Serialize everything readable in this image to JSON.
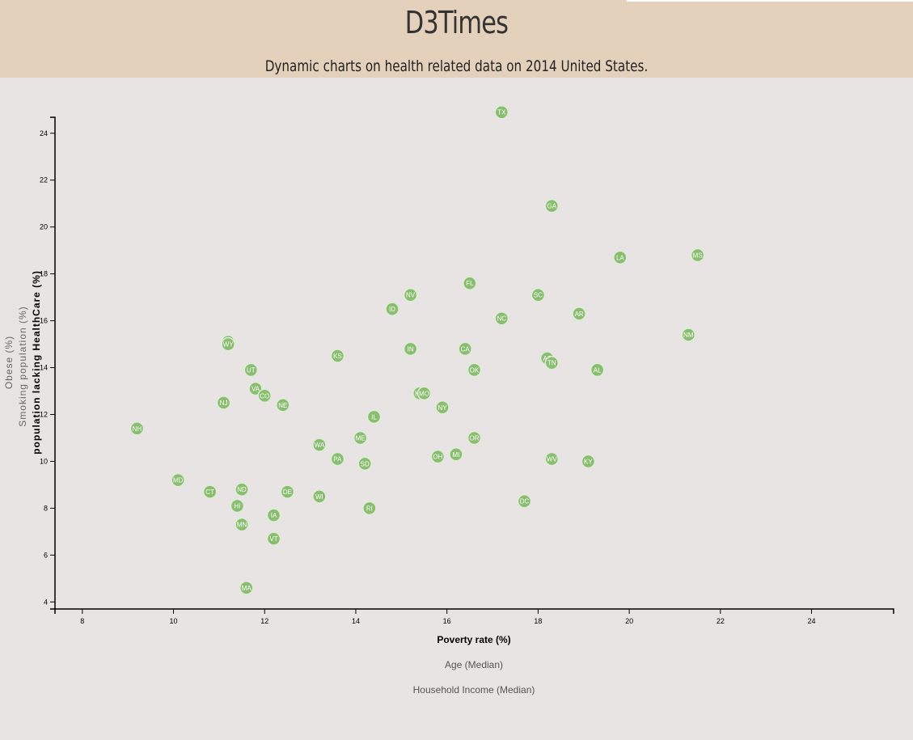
{
  "header": {
    "title": "D3Times",
    "subtitle": "Dynamic charts on health related data on 2014 United States."
  },
  "colors": {
    "header_bg": "#e3d1bb",
    "page_bg": "#e9e4e4",
    "marker_fill": "#89bd6f",
    "marker_stroke": "#e0ecd8",
    "marker_text": "#ffffff"
  },
  "chart_data": {
    "type": "scatter",
    "title": "",
    "xlabel": "Poverty rate (%)",
    "x_alt_labels": [
      "Age (Median)",
      "Household Income (Median)"
    ],
    "ylabel": "population lacking HealthCare (%)",
    "y_alt_labels": [
      "Smoking population (%)",
      "Obese (%)"
    ],
    "xlim": [
      7.4,
      25.8
    ],
    "ylim": [
      3.7,
      25.2
    ],
    "x_ticks": [
      8,
      10,
      12,
      14,
      16,
      18,
      20,
      22,
      24
    ],
    "y_ticks": [
      4,
      6,
      8,
      10,
      12,
      14,
      16,
      18,
      20,
      22,
      24
    ],
    "grid": false,
    "legend": "none",
    "points": [
      {
        "label": "TX",
        "x": 17.2,
        "y": 24.9
      },
      {
        "label": "GA",
        "x": 18.3,
        "y": 20.9
      },
      {
        "label": "LA",
        "x": 19.8,
        "y": 18.7
      },
      {
        "label": "MS",
        "x": 21.5,
        "y": 18.8
      },
      {
        "label": "FL",
        "x": 16.5,
        "y": 17.6
      },
      {
        "label": "NV",
        "x": 15.2,
        "y": 17.1
      },
      {
        "label": "SC",
        "x": 18.0,
        "y": 17.1
      },
      {
        "label": "ID",
        "x": 14.8,
        "y": 16.5
      },
      {
        "label": "AR",
        "x": 18.9,
        "y": 16.3
      },
      {
        "label": "NC",
        "x": 17.2,
        "y": 16.1
      },
      {
        "label": "NM",
        "x": 21.3,
        "y": 15.4
      },
      {
        "label": "AK",
        "x": 11.2,
        "y": 15.1
      },
      {
        "label": "WY",
        "x": 11.2,
        "y": 15.0
      },
      {
        "label": "IN",
        "x": 15.2,
        "y": 14.8
      },
      {
        "label": "CA",
        "x": 16.4,
        "y": 14.8
      },
      {
        "label": "KS",
        "x": 13.6,
        "y": 14.5
      },
      {
        "label": "AZ",
        "x": 18.2,
        "y": 14.4
      },
      {
        "label": "TN",
        "x": 18.3,
        "y": 14.2
      },
      {
        "label": "AL",
        "x": 19.3,
        "y": 13.9
      },
      {
        "label": "OK",
        "x": 16.6,
        "y": 13.9
      },
      {
        "label": "UT",
        "x": 11.7,
        "y": 13.9
      },
      {
        "label": "VA",
        "x": 11.8,
        "y": 13.1
      },
      {
        "label": "MT",
        "x": 15.4,
        "y": 12.9
      },
      {
        "label": "MO",
        "x": 15.5,
        "y": 12.9
      },
      {
        "label": "CO",
        "x": 12.0,
        "y": 12.8
      },
      {
        "label": "NJ",
        "x": 11.1,
        "y": 12.5
      },
      {
        "label": "NE",
        "x": 12.4,
        "y": 12.4
      },
      {
        "label": "NY",
        "x": 15.9,
        "y": 12.3
      },
      {
        "label": "IL",
        "x": 14.4,
        "y": 11.9
      },
      {
        "label": "NH",
        "x": 9.2,
        "y": 11.4
      },
      {
        "label": "OR",
        "x": 16.6,
        "y": 11.0
      },
      {
        "label": "ME",
        "x": 14.1,
        "y": 11.0
      },
      {
        "label": "WA",
        "x": 13.2,
        "y": 10.7
      },
      {
        "label": "MI",
        "x": 16.2,
        "y": 10.3
      },
      {
        "label": "OH",
        "x": 15.8,
        "y": 10.2
      },
      {
        "label": "PA",
        "x": 13.6,
        "y": 10.1
      },
      {
        "label": "WV",
        "x": 18.3,
        "y": 10.1
      },
      {
        "label": "KY",
        "x": 19.1,
        "y": 10.0
      },
      {
        "label": "SD",
        "x": 14.2,
        "y": 9.9
      },
      {
        "label": "MD",
        "x": 10.1,
        "y": 9.2
      },
      {
        "label": "ND",
        "x": 11.5,
        "y": 8.8
      },
      {
        "label": "CT",
        "x": 10.8,
        "y": 8.7
      },
      {
        "label": "DE",
        "x": 12.5,
        "y": 8.7
      },
      {
        "label": "WI",
        "x": 13.2,
        "y": 8.5
      },
      {
        "label": "DC",
        "x": 17.7,
        "y": 8.3
      },
      {
        "label": "HI",
        "x": 11.4,
        "y": 8.1
      },
      {
        "label": "RI",
        "x": 14.3,
        "y": 8.0
      },
      {
        "label": "IA",
        "x": 12.2,
        "y": 7.7
      },
      {
        "label": "MN",
        "x": 11.5,
        "y": 7.3
      },
      {
        "label": "VT",
        "x": 12.2,
        "y": 6.7
      },
      {
        "label": "MA",
        "x": 11.6,
        "y": 4.6
      }
    ]
  }
}
